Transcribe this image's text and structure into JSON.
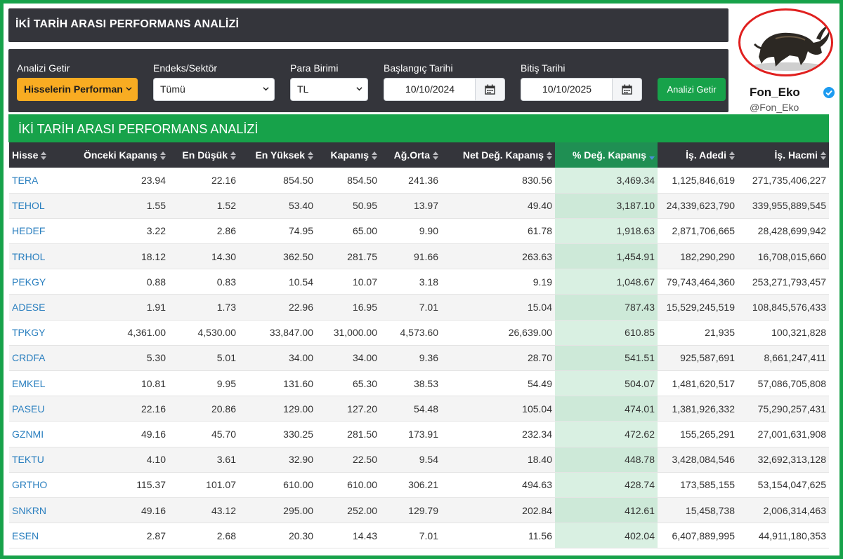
{
  "header": {
    "title": "İKİ TARİH ARASI PERFORMANS ANALİZİ"
  },
  "filters": {
    "analysis": {
      "label": "Analizi Getir",
      "value": "Hisselerin Performan"
    },
    "index": {
      "label": "Endeks/Sektör",
      "value": "Tümü"
    },
    "currency": {
      "label": "Para Birimi",
      "value": "TL"
    },
    "start_date": {
      "label": "Başlangıç Tarihi",
      "value": "10/10/2024"
    },
    "end_date": {
      "label": "Bitiş Tarihi",
      "value": "10/10/2025"
    },
    "submit_label": "Analizi Getir"
  },
  "brand": {
    "name": "Fon_Eko",
    "handle": "@Fon_Eko"
  },
  "section_title": "İKİ TARİH ARASI PERFORMANS ANALİZİ",
  "colors": {
    "accent_green": "#17a24a",
    "dark_panel": "#34353b",
    "orange": "#f8ac22",
    "link_blue": "#2a7fbf"
  },
  "table": {
    "headers": [
      "Hisse",
      "Önceki Kapanış",
      "En Düşük",
      "En Yüksek",
      "Kapanış",
      "Ağ.Orta",
      "Net Değ. Kapanış",
      "% Değ. Kapanış",
      "İş. Adedi",
      "İş. Hacmi"
    ],
    "rows": [
      [
        "TERA",
        "23.94",
        "22.16",
        "854.50",
        "854.50",
        "241.36",
        "830.56",
        "3,469.34",
        "1,125,846,619",
        "271,735,406,227"
      ],
      [
        "TEHOL",
        "1.55",
        "1.52",
        "53.40",
        "50.95",
        "13.97",
        "49.40",
        "3,187.10",
        "24,339,623,790",
        "339,955,889,545"
      ],
      [
        "HEDEF",
        "3.22",
        "2.86",
        "74.95",
        "65.00",
        "9.90",
        "61.78",
        "1,918.63",
        "2,871,706,665",
        "28,428,699,942"
      ],
      [
        "TRHOL",
        "18.12",
        "14.30",
        "362.50",
        "281.75",
        "91.66",
        "263.63",
        "1,454.91",
        "182,290,290",
        "16,708,015,660"
      ],
      [
        "PEKGY",
        "0.88",
        "0.83",
        "10.54",
        "10.07",
        "3.18",
        "9.19",
        "1,048.67",
        "79,743,464,360",
        "253,271,793,457"
      ],
      [
        "ADESE",
        "1.91",
        "1.73",
        "22.96",
        "16.95",
        "7.01",
        "15.04",
        "787.43",
        "15,529,245,519",
        "108,845,576,433"
      ],
      [
        "TPKGY",
        "4,361.00",
        "4,530.00",
        "33,847.00",
        "31,000.00",
        "4,573.60",
        "26,639.00",
        "610.85",
        "21,935",
        "100,321,828"
      ],
      [
        "CRDFA",
        "5.30",
        "5.01",
        "34.00",
        "34.00",
        "9.36",
        "28.70",
        "541.51",
        "925,587,691",
        "8,661,247,411"
      ],
      [
        "EMKEL",
        "10.81",
        "9.95",
        "131.60",
        "65.30",
        "38.53",
        "54.49",
        "504.07",
        "1,481,620,517",
        "57,086,705,808"
      ],
      [
        "PASEU",
        "22.16",
        "20.86",
        "129.00",
        "127.20",
        "54.48",
        "105.04",
        "474.01",
        "1,381,926,332",
        "75,290,257,431"
      ],
      [
        "GZNMI",
        "49.16",
        "45.70",
        "330.25",
        "281.50",
        "173.91",
        "232.34",
        "472.62",
        "155,265,291",
        "27,001,631,908"
      ],
      [
        "TEKTU",
        "4.10",
        "3.61",
        "32.90",
        "22.50",
        "9.54",
        "18.40",
        "448.78",
        "3,428,084,546",
        "32,692,313,128"
      ],
      [
        "GRTHO",
        "115.37",
        "101.07",
        "610.00",
        "610.00",
        "306.21",
        "494.63",
        "428.74",
        "173,585,155",
        "53,154,047,625"
      ],
      [
        "SNKRN",
        "49.16",
        "43.12",
        "295.00",
        "252.00",
        "129.79",
        "202.84",
        "412.61",
        "15,458,738",
        "2,006,314,463"
      ],
      [
        "ESEN",
        "2.87",
        "2.68",
        "20.30",
        "14.43",
        "7.01",
        "11.56",
        "402.04",
        "6,407,889,995",
        "44,911,180,353"
      ]
    ]
  }
}
